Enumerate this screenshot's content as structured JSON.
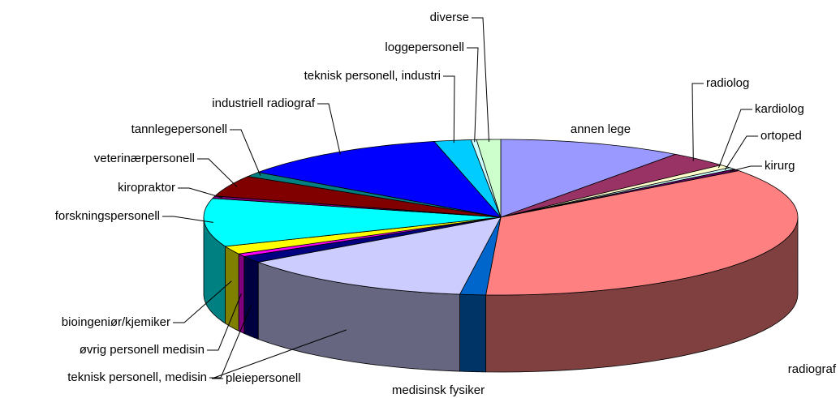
{
  "chart_data": {
    "type": "pie3d",
    "categories": [
      "annen lege",
      "radiolog",
      "kardiolog",
      "ortoped",
      "kirurg",
      "radiograf",
      "medisinsk fysiker",
      "pleiepersonell",
      "teknisk personell, medisin",
      "øvrig personell medisin",
      "bioingeniør/kjemiker",
      "forskningspersonell",
      "kiropraktor",
      "veterinærpersonell",
      "tannlegepersonell",
      "industriell radiograf",
      "teknisk personell, industri",
      "loggepersonell",
      "diverse"
    ],
    "values": [
      10,
      3.3,
      0.7,
      0.4,
      0.4,
      36,
      1.4,
      13,
      1.4,
      0.6,
      1.7,
      10,
      0.5,
      4.4,
      1,
      11.6,
      2,
      0.3,
      1.3
    ],
    "colors": [
      "#9999ff",
      "#993366",
      "#ffffcc",
      "#ccffff",
      "#660066",
      "#ff8080",
      "#0066cc",
      "#ccccff",
      "#000080",
      "#ff00ff",
      "#ffff00",
      "#00ffff",
      "#800080",
      "#800000",
      "#008080",
      "#0000ff",
      "#00ccff",
      "#ccffff",
      "#ccffcc"
    ]
  }
}
